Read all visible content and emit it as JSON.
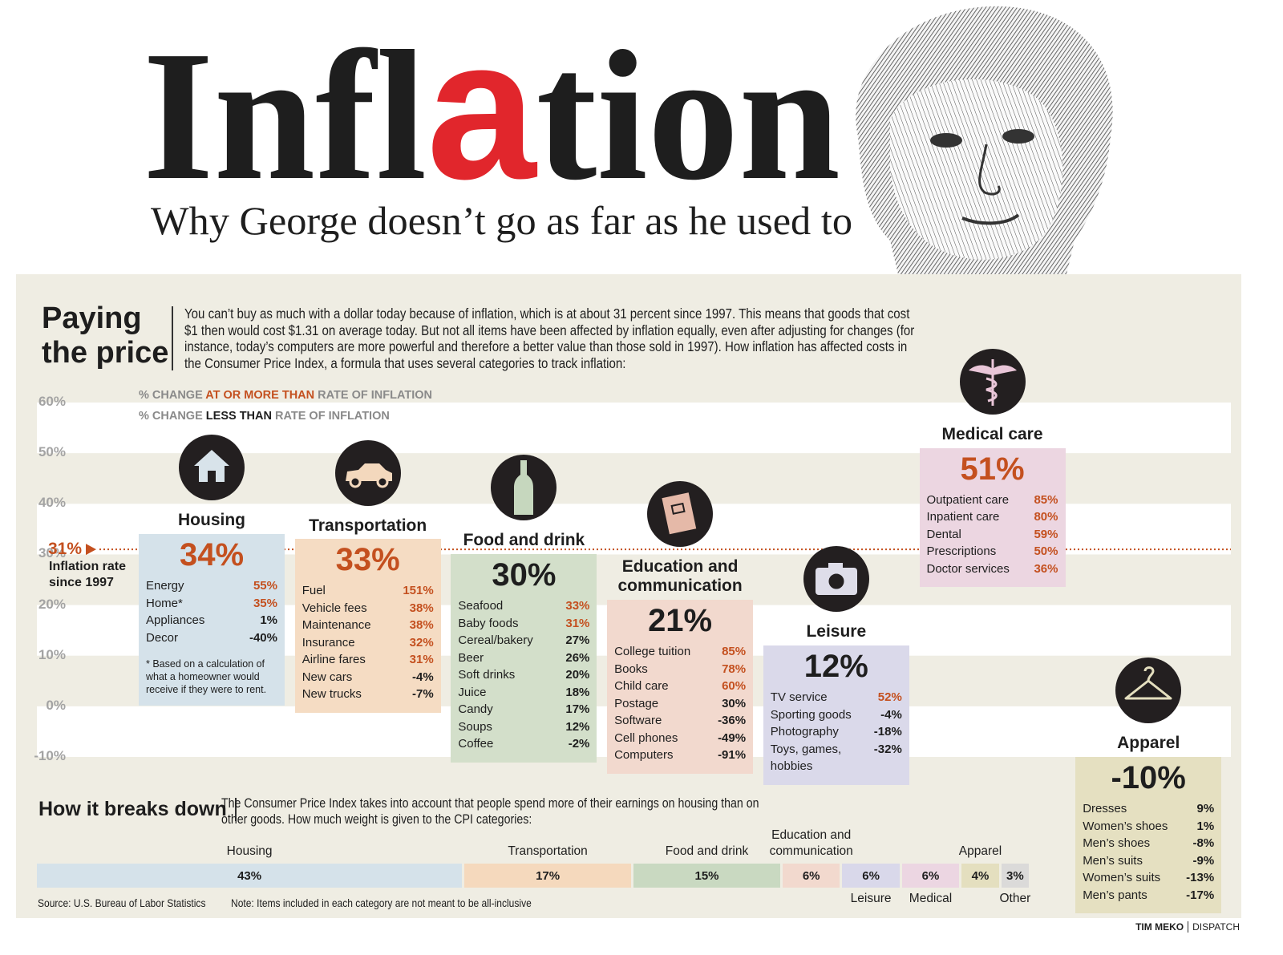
{
  "header": {
    "title": {
      "start": "Infl",
      "highlight": "a",
      "end": "tion"
    },
    "subtitle": "Why George doesn’t go as far as he used to"
  },
  "intro": {
    "heading": [
      "Paying",
      "the price"
    ],
    "text": "You can’t buy as much with a dollar today because of inflation, which is at about 31 percent since 1997. This means that goods that cost $1 then would cost $1.31 on average today. But not all items have been affected by inflation equally, even after adjusting for changes (for instance, today’s computers are more powerful and therefore a better value than those sold in 1997). How inflation has affected costs in the Consumer Price Index, a formula that uses several categories to track inflation:"
  },
  "chart_data": {
    "type": "bar",
    "legend": [
      {
        "parts": [
          "% CHANGE ",
          "AT OR MORE THAN",
          " RATE OF INFLATION"
        ]
      },
      {
        "parts": [
          "% CHANGE ",
          "LESS THAN",
          " RATE OF INFLATION"
        ]
      }
    ],
    "above_color": "#c4501f",
    "below_color": "#1e1e1e",
    "ylim": [
      -10,
      60
    ],
    "yticks": [
      {
        "value": -10,
        "label": "-10%"
      },
      {
        "value": 0,
        "label": "0%"
      },
      {
        "value": 10,
        "label": "10%"
      },
      {
        "value": 20,
        "label": "20%"
      },
      {
        "value": 30,
        "label": "30%"
      },
      {
        "value": 40,
        "label": "40%"
      },
      {
        "value": 50,
        "label": "50%"
      },
      {
        "value": 60,
        "label": "60%"
      }
    ],
    "grid": true,
    "reference": {
      "value": 31,
      "label": "31%",
      "text": "Inflation rate since 1997",
      "color": "#c4501f"
    },
    "series": [
      {
        "name": "Housing",
        "value": 34,
        "value_label": "34%",
        "color": "#d5e2ea",
        "items": [
          {
            "name": "Energy",
            "value": 55,
            "value_label": "55%"
          },
          {
            "name": "Home*",
            "value": 35,
            "value_label": "35%"
          },
          {
            "name": "Appliances",
            "value": 1,
            "value_label": "1%"
          },
          {
            "name": "Decor",
            "value": -40,
            "value_label": "-40%"
          }
        ],
        "note": "* Based on a calculation of what a homeowner would receive if they were to rent."
      },
      {
        "name": "Transportation",
        "value": 33,
        "value_label": "33%",
        "color": "#f5dcc3",
        "items": [
          {
            "name": "Fuel",
            "value": 151,
            "value_label": "151%"
          },
          {
            "name": "Vehicle fees",
            "value": 38,
            "value_label": "38%"
          },
          {
            "name": "Maintenance",
            "value": 38,
            "value_label": "38%"
          },
          {
            "name": "Insurance",
            "value": 32,
            "value_label": "32%"
          },
          {
            "name": "Airline fares",
            "value": 31,
            "value_label": "31%"
          },
          {
            "name": "New cars",
            "value": -4,
            "value_label": "-4%"
          },
          {
            "name": "New trucks",
            "value": -7,
            "value_label": "-7%"
          }
        ]
      },
      {
        "name": "Food and drink",
        "value": 30,
        "value_label": "30%",
        "color": "#d3dfca",
        "items": [
          {
            "name": "Seafood",
            "value": 33,
            "value_label": "33%"
          },
          {
            "name": "Baby foods",
            "value": 31,
            "value_label": "31%"
          },
          {
            "name": "Cereal/bakery",
            "value": 27,
            "value_label": "27%"
          },
          {
            "name": "Beer",
            "value": 26,
            "value_label": "26%"
          },
          {
            "name": "Soft drinks",
            "value": 20,
            "value_label": "20%"
          },
          {
            "name": "Juice",
            "value": 18,
            "value_label": "18%"
          },
          {
            "name": "Candy",
            "value": 17,
            "value_label": "17%"
          },
          {
            "name": "Soups",
            "value": 12,
            "value_label": "12%"
          },
          {
            "name": "Coffee",
            "value": -2,
            "value_label": "-2%"
          }
        ]
      },
      {
        "name": "Education and communication",
        "value": 21,
        "value_label": "21%",
        "color": "#f2d9ce",
        "items": [
          {
            "name": "College tuition",
            "value": 85,
            "value_label": "85%"
          },
          {
            "name": "Books",
            "value": 78,
            "value_label": "78%"
          },
          {
            "name": "Child care",
            "value": 60,
            "value_label": "60%"
          },
          {
            "name": "Postage",
            "value": 30,
            "value_label": "30%"
          },
          {
            "name": "Software",
            "value": -36,
            "value_label": "-36%"
          },
          {
            "name": "Cell phones",
            "value": -49,
            "value_label": "-49%"
          },
          {
            "name": "Computers",
            "value": -91,
            "value_label": "-91%"
          }
        ]
      },
      {
        "name": "Leisure",
        "value": 12,
        "value_label": "12%",
        "color": "#dad9ea",
        "items": [
          {
            "name": "TV service",
            "value": 52,
            "value_label": "52%"
          },
          {
            "name": "Sporting goods",
            "value": -4,
            "value_label": "-4%"
          },
          {
            "name": "Photography",
            "value": -18,
            "value_label": "-18%"
          },
          {
            "name": "Toys, games, hobbies",
            "value": -32,
            "value_label": "-32%"
          }
        ]
      },
      {
        "name": "Medical care",
        "value": 51,
        "value_label": "51%",
        "color": "#ecd6e1",
        "items": [
          {
            "name": "Outpatient care",
            "value": 85,
            "value_label": "85%"
          },
          {
            "name": "Inpatient care",
            "value": 80,
            "value_label": "80%"
          },
          {
            "name": "Dental",
            "value": 59,
            "value_label": "59%"
          },
          {
            "name": "Prescriptions",
            "value": 50,
            "value_label": "50%"
          },
          {
            "name": "Doctor services",
            "value": 36,
            "value_label": "36%"
          }
        ]
      },
      {
        "name": "Apparel",
        "value": -10,
        "value_label": "-10%",
        "color": "#e5e0c1",
        "items": [
          {
            "name": "Dresses",
            "value": 9,
            "value_label": "9%"
          },
          {
            "name": "Women’s shoes",
            "value": 1,
            "value_label": "1%"
          },
          {
            "name": "Men’s shoes",
            "value": -8,
            "value_label": "-8%"
          },
          {
            "name": "Men’s suits",
            "value": -9,
            "value_label": "-9%"
          },
          {
            "name": "Women’s suits",
            "value": -13,
            "value_label": "-13%"
          },
          {
            "name": "Men’s pants",
            "value": -17,
            "value_label": "-17%"
          }
        ]
      }
    ]
  },
  "breakdown": {
    "heading": "How it breaks down",
    "text": "The Consumer Price Index takes into account that people spend more of their earnings on housing than on other goods. How much weight is given to the CPI categories:",
    "segments": [
      {
        "name": "Housing",
        "value": 43,
        "value_label": "43%",
        "color": "#d5e2ea"
      },
      {
        "name": "Transportation",
        "value": 17,
        "value_label": "17%",
        "color": "#f5d9bd"
      },
      {
        "name": "Food and drink",
        "value": 15,
        "value_label": "15%",
        "color": "#c9d9c1"
      },
      {
        "name": "Education and communication",
        "value": 6,
        "value_label": "6%",
        "color": "#f2d9ce"
      },
      {
        "name": "Leisure",
        "value": 6,
        "value_label": "6%",
        "color": "#d9d8ea"
      },
      {
        "name": "Medical",
        "value": 6,
        "value_label": "6%",
        "color": "#ecd6e2"
      },
      {
        "name": "Apparel",
        "value": 4,
        "value_label": "4%",
        "color": "#e4dfbf"
      },
      {
        "name": "Other",
        "value": 3,
        "value_label": "3%",
        "color": "#dbdad9"
      }
    ]
  },
  "footer": {
    "source": "Source: U.S. Bureau of Labor Statistics",
    "note": "Note: Items included in each category are not meant to be all-inclusive",
    "credit": [
      "TIM MEKO",
      "DISPATCH"
    ]
  }
}
